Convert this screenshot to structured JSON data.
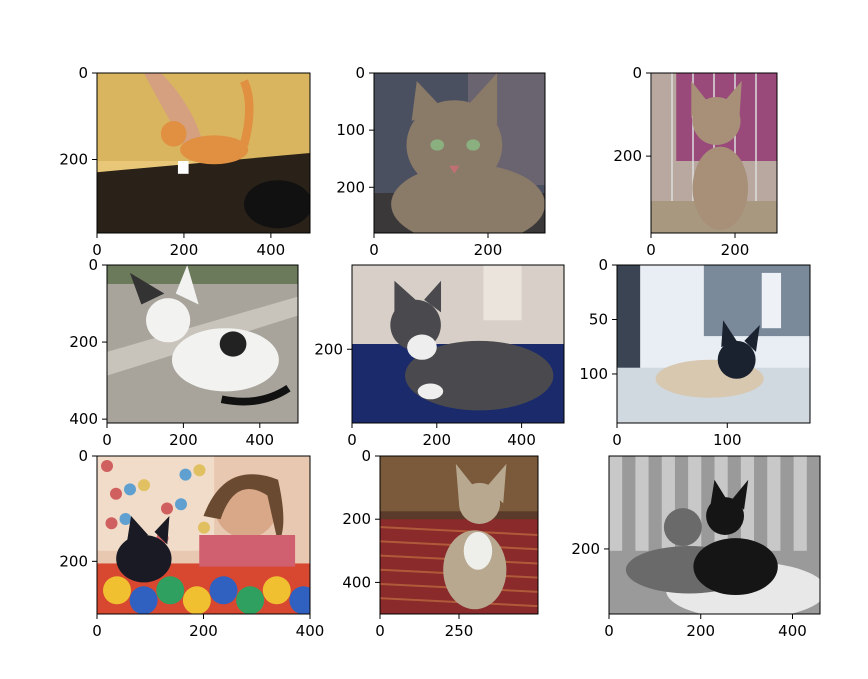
{
  "chart_data": [
    {
      "type": "image",
      "image_width": 490,
      "image_height": 370,
      "xticks": [
        "0",
        "200",
        "400"
      ],
      "yticks": [
        "0",
        "200"
      ],
      "scene": "orange-tabby-kitten-on-table",
      "colors": {
        "bg": "#e8c878",
        "wall": "#d9b560",
        "table": "#2a2218",
        "cat": "#e09040",
        "arm": "#d4a080"
      }
    },
    {
      "type": "image",
      "image_width": 300,
      "image_height": 280,
      "xticks": [
        "0",
        "200"
      ],
      "yticks": [
        "0",
        "100",
        "200"
      ],
      "scene": "brown-tabby-cat-closeup",
      "colors": {
        "bg": "#4b5060",
        "wall": "#6a6470",
        "floor": "#3a3838",
        "cat": "#8a7a68"
      }
    },
    {
      "type": "image",
      "image_width": 300,
      "image_height": 385,
      "xticks": [
        "0",
        "200"
      ],
      "yticks": [
        "0",
        "200"
      ],
      "scene": "tabby-kitten-in-cage",
      "colors": {
        "bg": "#b8a8a0",
        "wall": "#9a4a7a",
        "floor": "#a89880",
        "cat": "#a89078"
      }
    },
    {
      "type": "image",
      "image_width": 500,
      "image_height": 410,
      "xticks": [
        "0",
        "200",
        "400"
      ],
      "yticks": [
        "0",
        "200",
        "400"
      ],
      "scene": "white-kitten-with-black-spot-on-sidewalk",
      "colors": {
        "bg": "#a8a49c",
        "wall": "#6a7a5a",
        "floor": "#b0aca4",
        "cat": "#f2f2f0"
      }
    },
    {
      "type": "image",
      "image_width": 500,
      "image_height": 375,
      "xticks": [
        "0",
        "200",
        "400"
      ],
      "yticks": [
        "200"
      ],
      "scene": "gray-white-cat-on-blue-blanket",
      "colors": {
        "bg": "#c8c0b8",
        "wall": "#d8d0c8",
        "floor": "#1a2a6a",
        "cat": "#4a4a4e"
      }
    },
    {
      "type": "image",
      "image_width": 175,
      "image_height": 145,
      "xticks": [
        "0",
        "100"
      ],
      "yticks": [
        "0",
        "50",
        "100"
      ],
      "scene": "siamese-cat-by-computer",
      "colors": {
        "bg": "#e8eef4",
        "wall": "#7a8a9a",
        "floor": "#d0d8e0",
        "cat": "#d8c8b0"
      }
    },
    {
      "type": "image",
      "image_width": 400,
      "image_height": 300,
      "xticks": [
        "0",
        "200",
        "400"
      ],
      "yticks": [
        "0",
        "200"
      ],
      "scene": "girl-with-black-kitten-in-bed",
      "colors": {
        "bg": "#e8c8b0",
        "wall": "#f0dcc8",
        "floor": "#d84830",
        "cat": "#1a1a24"
      }
    },
    {
      "type": "image",
      "image_width": 500,
      "image_height": 500,
      "xticks": [
        "0",
        "250"
      ],
      "yticks": [
        "0",
        "200",
        "400"
      ],
      "scene": "tabby-kitten-on-red-rug",
      "colors": {
        "bg": "#5a3a2a",
        "wall": "#7a5a3a",
        "floor": "#8a2a2a",
        "cat": "#b8a890"
      }
    },
    {
      "type": "image",
      "image_width": 460,
      "image_height": 340,
      "xticks": [
        "0",
        "200",
        "400"
      ],
      "yticks": [
        "200"
      ],
      "scene": "tabby-and-black-cat-in-bed",
      "colors": {
        "bg": "#9a9a9a",
        "wall": "#c8c8c8",
        "floor": "#e8e8e8",
        "cat": "#6a6a6a"
      }
    }
  ]
}
